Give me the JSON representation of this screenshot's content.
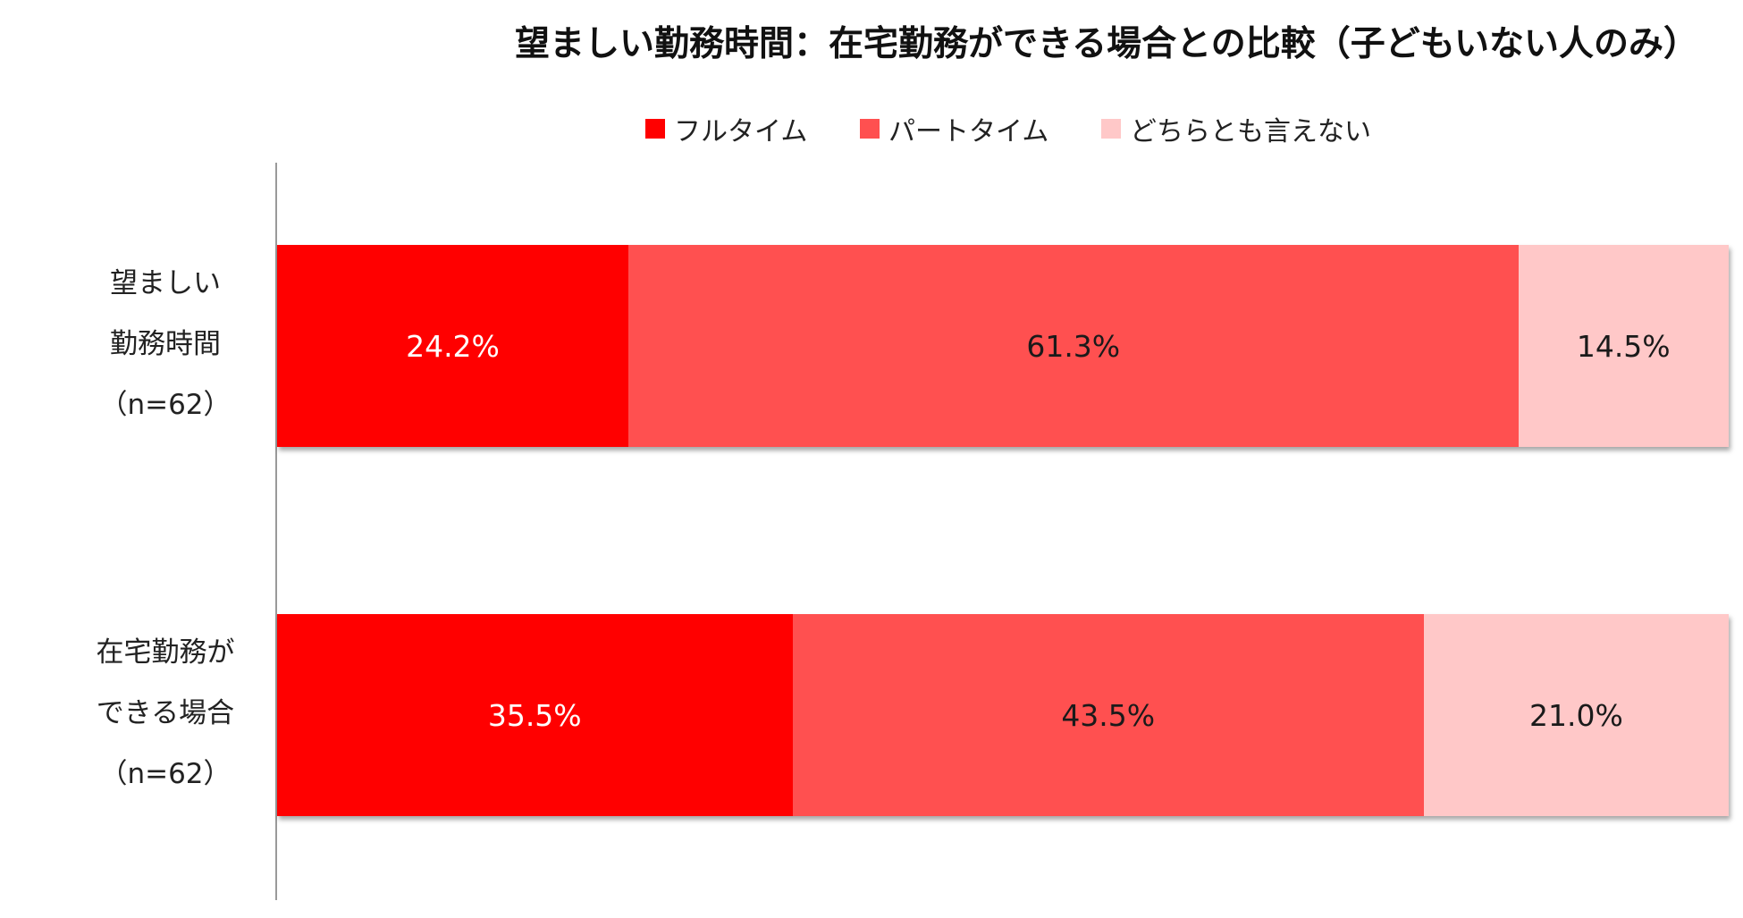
{
  "chart_data": {
    "type": "bar",
    "orientation": "horizontal",
    "stacked": true,
    "percent": true,
    "title": "望ましい勤務時間：在宅勤務ができる場合との比較（子どもいない人のみ）",
    "categories": [
      [
        "望ましい",
        "勤務時間",
        "（n=62）"
      ],
      [
        "在宅勤務が",
        "できる場合",
        "（n=62）"
      ]
    ],
    "series": [
      {
        "name": "フルタイム",
        "color": "#ff0000",
        "label_color": "#ffffff",
        "values": [
          24.2,
          35.5
        ],
        "labels": [
          "24.2%",
          "35.5%"
        ]
      },
      {
        "name": "パートタイム",
        "color": "#ff5050",
        "label_color": "#1a1a1a",
        "values": [
          61.3,
          43.5
        ],
        "labels": [
          "61.3%",
          "43.5%"
        ]
      },
      {
        "name": "どちらとも言えない",
        "color": "#ffc8c8",
        "label_color": "#1a1a1a",
        "values": [
          14.5,
          21.0
        ],
        "labels": [
          "14.5%",
          "21.0%"
        ]
      }
    ],
    "xlim": [
      0,
      100
    ],
    "legend_position": "top",
    "grid": false
  }
}
